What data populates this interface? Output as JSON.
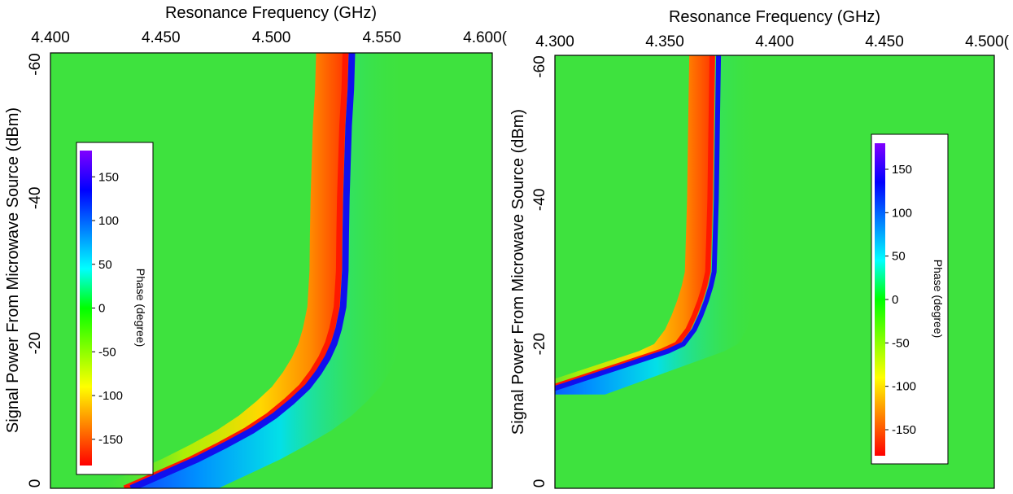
{
  "chart_data": [
    {
      "type": "heatmap",
      "title": "Resonance Frequency (GHz)",
      "xlabel": "Resonance Frequency (GHz)",
      "ylabel": "Signal Power From Microwave Source (dBm)",
      "xlim": [
        4.4,
        4.6
      ],
      "ylim": [
        0,
        -60
      ],
      "x_ticks": [
        4.4,
        4.45,
        4.5,
        4.55,
        4.6
      ],
      "x_tick_labels": [
        "4.400",
        "4.450",
        "4.500",
        "4.550",
        "4.600("
      ],
      "y_ticks": [
        -60,
        -40,
        -20,
        0
      ],
      "y_tick_labels": [
        "-60",
        "-40",
        "-20",
        "0"
      ],
      "resonance_curve": {
        "power_dbm": [
          -60,
          -55,
          -50,
          -45,
          -40,
          -35,
          -30,
          -25,
          -22,
          -20,
          -18,
          -16,
          -14,
          -12,
          -10,
          -8,
          -6,
          -4,
          -2,
          0
        ],
        "frequency_ghz": [
          4.535,
          4.5345,
          4.5335,
          4.533,
          4.5325,
          4.5322,
          4.532,
          4.531,
          4.529,
          4.527,
          4.524,
          4.52,
          4.515,
          4.508,
          4.5,
          4.49,
          4.478,
          4.465,
          4.45,
          4.435
        ]
      },
      "colorbar": {
        "label": "Phase (degree)",
        "range": [
          -180,
          180
        ],
        "tick_labels": [
          "150",
          "100",
          "50",
          "0",
          "-50",
          "-100",
          "-150"
        ],
        "tick_values": [
          150,
          100,
          50,
          0,
          -50,
          -100,
          -150
        ],
        "colors": [
          "#ff0000",
          "#ff8000",
          "#ffff00",
          "#80ff00",
          "#00ff00",
          "#00ffff",
          "#0080ff",
          "#0000ff",
          "#8000ff"
        ]
      },
      "grid": false
    },
    {
      "type": "heatmap",
      "title": "Resonance Frequency (GHz)",
      "xlabel": "Resonance Frequency (GHz)",
      "ylabel": "Signal Power From Microwave Source (dBm)",
      "xlim": [
        4.3,
        4.5
      ],
      "ylim": [
        0,
        -60
      ],
      "x_ticks": [
        4.3,
        4.35,
        4.4,
        4.45,
        4.5
      ],
      "x_tick_labels": [
        "4.300",
        "4.350",
        "4.400",
        "4.450",
        "4.500("
      ],
      "y_ticks": [
        -60,
        -40,
        -20,
        0
      ],
      "y_tick_labels": [
        "-60",
        "-40",
        "-20",
        "0"
      ],
      "resonance_curve": {
        "power_dbm": [
          -60,
          -50,
          -40,
          -30,
          -28,
          -26,
          -24,
          -22,
          -20,
          -19,
          -18,
          -17,
          -16,
          -15,
          -14,
          -13
        ],
        "frequency_ghz": [
          4.373,
          4.3725,
          4.372,
          4.371,
          4.3695,
          4.3675,
          4.365,
          4.362,
          4.357,
          4.35,
          4.34,
          4.33,
          4.32,
          4.31,
          4.3,
          4.29
        ]
      },
      "colorbar": {
        "label": "Phase (degree)",
        "range": [
          -180,
          180
        ],
        "tick_labels": [
          "150",
          "100",
          "50",
          "0",
          "-50",
          "-100",
          "-150"
        ],
        "tick_values": [
          150,
          100,
          50,
          0,
          -50,
          -100,
          -150
        ],
        "colors": [
          "#ff0000",
          "#ff8000",
          "#ffff00",
          "#80ff00",
          "#00ff00",
          "#00ffff",
          "#0080ff",
          "#0000ff",
          "#8000ff"
        ]
      },
      "grid": false
    }
  ]
}
